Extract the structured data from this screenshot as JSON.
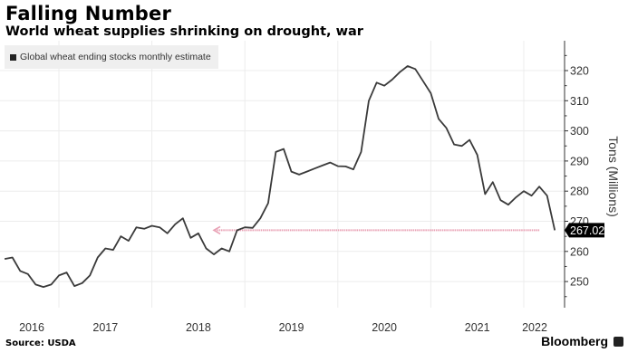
{
  "header": {
    "title": "Falling Number",
    "subtitle": "World wheat supplies shrinking on drought, war"
  },
  "footer": {
    "source": "Source: USDA",
    "brand": "Bloomberg"
  },
  "colors": {
    "line": "#3a3a3a",
    "arrow": "#e8a0b4",
    "grid": "#ececec",
    "legend_bg": "#efefef",
    "value_label_bg": "#000000"
  },
  "chart_data": {
    "type": "line",
    "title": "Falling Number",
    "subtitle": "World wheat supplies shrinking on drought, war",
    "xlabel": "",
    "ylabel": "Tons (Millions)",
    "y_axis_side": "right",
    "ylim": [
      240,
      328
    ],
    "yticks": [
      250,
      260,
      270,
      280,
      290,
      300,
      310,
      320
    ],
    "xticks": [
      "2016",
      "2017",
      "2018",
      "2019",
      "2020",
      "2021",
      "2022"
    ],
    "grid": true,
    "legend": {
      "placement": "top-left",
      "entries": [
        "Global wheat ending stocks monthly estimate"
      ]
    },
    "series": [
      {
        "name": "Global wheat ending stocks monthly estimate",
        "start": "2016-06",
        "frequency": "monthly",
        "values": [
          257.5,
          258,
          253.5,
          252.5,
          249,
          248.2,
          249,
          252,
          253,
          248.5,
          249.5,
          252,
          258,
          261,
          260.5,
          265,
          263.5,
          268,
          267.5,
          268.5,
          268,
          266,
          269,
          271,
          264.5,
          266,
          261,
          259,
          261,
          260,
          267,
          268,
          267.8,
          271,
          276,
          293,
          294,
          286.5,
          285.5,
          286.5,
          287.5,
          288.5,
          289.5,
          288.3,
          288.2,
          287.2,
          293,
          310,
          316,
          315,
          317,
          319.5,
          321.5,
          320.5,
          316.5,
          312.5,
          304,
          301,
          295.5,
          295,
          297,
          292,
          279,
          283,
          277,
          275.5,
          278,
          280,
          278.5,
          281.5,
          278.5,
          267.02
        ]
      }
    ],
    "annotations": [
      {
        "type": "last-value-label",
        "value": "267.02"
      },
      {
        "type": "horizontal-arrow",
        "y": 267.02,
        "from": "2022-03",
        "to": "2018-09",
        "direction": "left"
      }
    ]
  }
}
